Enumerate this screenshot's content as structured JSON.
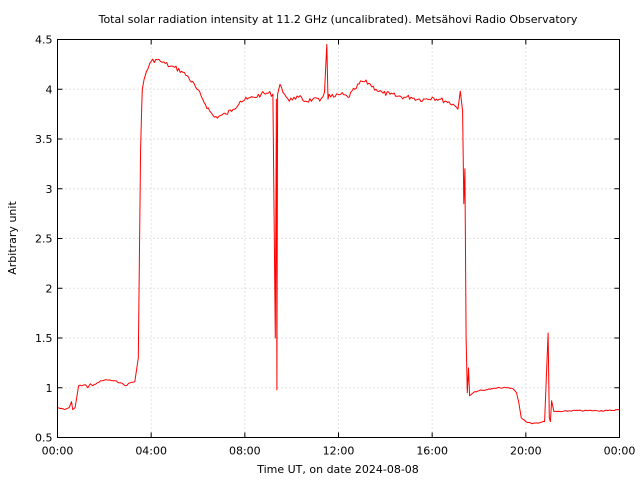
{
  "chart_data": {
    "type": "line",
    "title": "Total solar radiation intensity at 11.2 GHz (uncalibrated). Metsähovi Radio Observatory",
    "xlabel": "Time UT, on date 2024-08-08",
    "ylabel": "Arbitrary unit",
    "xlim": [
      0,
      24
    ],
    "ylim": [
      0.5,
      4.5
    ],
    "x_ticks": [
      0,
      4,
      8,
      12,
      16,
      20,
      24
    ],
    "x_tick_labels": [
      "00:00",
      "04:00",
      "08:00",
      "12:00",
      "16:00",
      "20:00",
      "00:00"
    ],
    "y_ticks": [
      0.5,
      1,
      1.5,
      2,
      2.5,
      3,
      3.5,
      4,
      4.5
    ],
    "y_tick_labels": [
      "0.5",
      "1",
      "1.5",
      "2",
      "2.5",
      "3",
      "3.5",
      "4",
      "4.5"
    ],
    "grid": true,
    "line_color": "#ff0000",
    "series": [
      {
        "x": [
          0.0,
          0.3,
          0.5,
          0.6,
          0.65,
          0.75,
          0.9,
          1.2,
          1.3,
          1.4,
          1.5,
          1.7,
          1.9,
          2.1,
          2.4,
          2.7,
          2.9,
          3.1,
          3.3,
          3.45,
          3.55,
          3.6,
          3.62,
          3.66,
          3.7,
          3.8,
          4.0,
          4.2,
          4.4,
          4.6,
          4.8,
          5.0,
          5.3,
          5.6,
          5.9,
          6.2,
          6.5,
          6.7,
          6.9,
          7.2,
          7.5,
          7.8,
          8.1,
          8.4,
          8.7,
          9.0,
          9.2,
          9.3,
          9.35,
          9.37,
          9.4,
          9.45,
          9.5,
          9.7,
          9.9,
          10.1,
          10.3,
          10.6,
          10.9,
          11.2,
          11.4,
          11.5,
          11.55,
          11.6,
          11.8,
          12.1,
          12.4,
          12.7,
          13.0,
          13.3,
          13.6,
          13.9,
          14.2,
          14.5,
          14.8,
          15.1,
          15.4,
          15.7,
          16.0,
          16.3,
          16.6,
          16.9,
          17.1,
          17.2,
          17.3,
          17.35,
          17.4,
          17.45,
          17.5,
          17.55,
          17.6,
          17.65,
          17.7,
          17.8,
          18.0,
          18.3,
          18.6,
          18.9,
          19.2,
          19.45,
          19.6,
          19.7,
          19.8,
          20.0,
          20.3,
          20.6,
          20.8,
          20.95,
          21.0,
          21.05,
          21.1,
          21.2,
          21.5,
          22.0,
          22.5,
          23.0,
          23.5,
          24.0
        ],
        "y": [
          0.8,
          0.78,
          0.8,
          0.86,
          0.78,
          0.8,
          1.02,
          1.03,
          1.0,
          1.04,
          1.02,
          1.05,
          1.07,
          1.08,
          1.07,
          1.05,
          1.02,
          1.05,
          1.06,
          1.3,
          3.4,
          3.85,
          4.0,
          4.05,
          4.1,
          4.18,
          4.28,
          4.3,
          4.28,
          4.26,
          4.23,
          4.22,
          4.18,
          4.12,
          4.02,
          3.9,
          3.78,
          3.72,
          3.73,
          3.75,
          3.8,
          3.88,
          3.9,
          3.92,
          3.95,
          3.96,
          3.95,
          1.5,
          3.9,
          0.98,
          3.95,
          4.0,
          4.05,
          3.95,
          3.88,
          3.92,
          3.92,
          3.88,
          3.9,
          3.88,
          3.97,
          4.45,
          3.9,
          3.95,
          3.92,
          3.95,
          3.92,
          4.0,
          4.08,
          4.06,
          4.0,
          3.96,
          3.95,
          3.93,
          3.92,
          3.92,
          3.9,
          3.9,
          3.92,
          3.9,
          3.88,
          3.85,
          3.8,
          3.98,
          3.78,
          2.85,
          3.2,
          1.5,
          0.95,
          1.2,
          0.92,
          0.93,
          0.94,
          0.96,
          0.97,
          0.98,
          0.99,
          1.0,
          1.0,
          0.99,
          0.95,
          0.85,
          0.7,
          0.66,
          0.64,
          0.65,
          0.66,
          1.55,
          0.7,
          0.66,
          0.87,
          0.76,
          0.76,
          0.77,
          0.77,
          0.77,
          0.77,
          0.78
        ]
      }
    ]
  }
}
